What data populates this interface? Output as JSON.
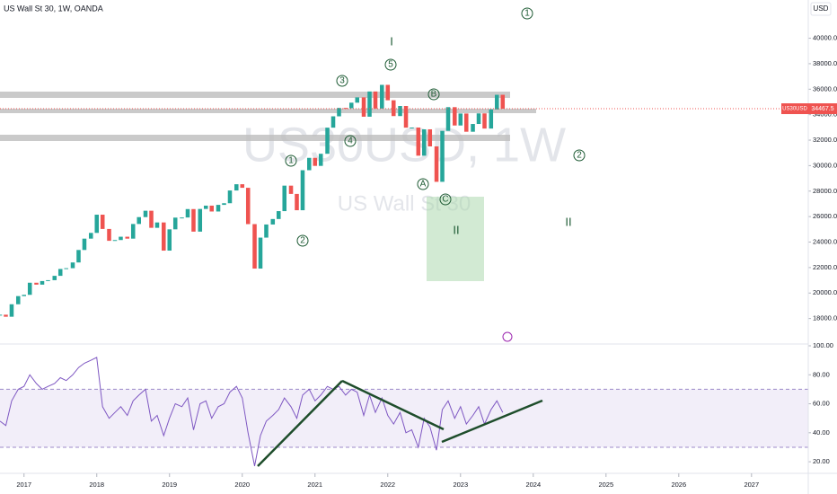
{
  "chart_data": [
    {
      "type": "candlestick",
      "title": "US Wall St 30, 1W, OANDA",
      "watermark": "US30USD, 1W",
      "subtitle": "US Wall St 30",
      "currency": "USD",
      "symbol": "US30USD",
      "x": [
        2016.67,
        2016.75,
        2016.83,
        2016.92,
        2017.0,
        2017.08,
        2017.17,
        2017.25,
        2017.33,
        2017.42,
        2017.5,
        2017.58,
        2017.67,
        2017.75,
        2017.83,
        2017.92,
        2018.0,
        2018.08,
        2018.17,
        2018.25,
        2018.33,
        2018.42,
        2018.5,
        2018.58,
        2018.67,
        2018.75,
        2018.83,
        2018.92,
        2019.0,
        2019.08,
        2019.17,
        2019.25,
        2019.33,
        2019.42,
        2019.5,
        2019.58,
        2019.67,
        2019.75,
        2019.83,
        2019.92,
        2020.0,
        2020.08,
        2020.17,
        2020.25,
        2020.33,
        2020.42,
        2020.5,
        2020.58,
        2020.67,
        2020.75,
        2020.83,
        2020.92,
        2021.0,
        2021.08,
        2021.17,
        2021.25,
        2021.33,
        2021.42,
        2021.5,
        2021.58,
        2021.67,
        2021.75,
        2021.83,
        2021.92,
        2022.0,
        2022.08,
        2022.17,
        2022.25,
        2022.33,
        2022.42,
        2022.5,
        2022.58,
        2022.67,
        2022.75,
        2022.83,
        2022.92,
        2023.0,
        2023.08,
        2023.17,
        2023.25,
        2023.33,
        2023.42,
        2023.5,
        2023.58
      ],
      "values": [
        18300,
        18140,
        19120,
        19760,
        19860,
        20810,
        20660,
        20940,
        21010,
        21350,
        21890,
        21950,
        22400,
        23380,
        24270,
        24720,
        26150,
        25030,
        24100,
        24160,
        24420,
        24270,
        25420,
        25960,
        26460,
        25120,
        25540,
        23330,
        25000,
        25920,
        25930,
        26590,
        24820,
        26600,
        26860,
        26400,
        26920,
        27050,
        28050,
        28540,
        28260,
        25410,
        21920,
        24350,
        25380,
        25810,
        26430,
        28430,
        27780,
        26500,
        29640,
        30610,
        29980,
        30930,
        32980,
        33870,
        34530,
        34500,
        34940,
        35360,
        33840,
        35820,
        34480,
        36340,
        35130,
        33890,
        34680,
        32980,
        32990,
        30780,
        32850,
        31510,
        28730,
        32730,
        34590,
        33150,
        34090,
        32660,
        33270,
        34100,
        32910,
        34410,
        35560,
        34467.5
      ],
      "up_color": "#26a69a",
      "down_color": "#ef5350",
      "last_price": 34467.5,
      "xlim": [
        2016.67,
        2027.78
      ],
      "ylim": [
        16000,
        43000
      ],
      "yticks": [
        {
          "value": 18000,
          "label": "18000.0"
        },
        {
          "value": 20000,
          "label": "20000.0"
        },
        {
          "value": 22000,
          "label": "22000.0"
        },
        {
          "value": 24000,
          "label": "24000.0"
        },
        {
          "value": 26000,
          "label": "26000.0"
        },
        {
          "value": 28000,
          "label": "28000.0"
        },
        {
          "value": 30000,
          "label": "30000.0"
        },
        {
          "value": 32000,
          "label": "32000.0"
        },
        {
          "value": 34000,
          "label": "34000.0"
        },
        {
          "value": 36000,
          "label": "36000.0"
        },
        {
          "value": 38000,
          "label": "38000.0"
        },
        {
          "value": 40000,
          "label": "40000.0"
        }
      ],
      "annotations": [
        "1",
        "3",
        "5",
        "B",
        "4",
        "1",
        "2",
        "A",
        "C",
        "2",
        "I",
        "II",
        "II"
      ]
    },
    {
      "type": "line",
      "color": "#7e57c2",
      "band_color": "#ede7f6",
      "x": [
        2016.67,
        2016.75,
        2016.83,
        2016.92,
        2017.0,
        2017.08,
        2017.17,
        2017.25,
        2017.33,
        2017.42,
        2017.5,
        2017.58,
        2017.67,
        2017.75,
        2017.83,
        2017.92,
        2018.0,
        2018.08,
        2018.17,
        2018.25,
        2018.33,
        2018.42,
        2018.5,
        2018.58,
        2018.67,
        2018.75,
        2018.83,
        2018.92,
        2019.0,
        2019.08,
        2019.17,
        2019.25,
        2019.33,
        2019.42,
        2019.5,
        2019.58,
        2019.67,
        2019.75,
        2019.83,
        2019.92,
        2020.0,
        2020.08,
        2020.17,
        2020.25,
        2020.33,
        2020.42,
        2020.5,
        2020.58,
        2020.67,
        2020.75,
        2020.83,
        2020.92,
        2021.0,
        2021.08,
        2021.17,
        2021.25,
        2021.33,
        2021.42,
        2021.5,
        2021.58,
        2021.67,
        2021.75,
        2021.83,
        2021.92,
        2022.0,
        2022.08,
        2022.17,
        2022.25,
        2022.33,
        2022.42,
        2022.5,
        2022.58,
        2022.67,
        2022.75,
        2022.83,
        2022.92,
        2023.0,
        2023.08,
        2023.17,
        2023.25,
        2023.33,
        2023.42,
        2023.5,
        2023.58
      ],
      "values": [
        48,
        45,
        62,
        70,
        72,
        80,
        74,
        70,
        72,
        74,
        78,
        76,
        80,
        85,
        88,
        90,
        92,
        58,
        50,
        54,
        58,
        52,
        62,
        66,
        70,
        48,
        52,
        38,
        50,
        60,
        58,
        64,
        42,
        60,
        62,
        50,
        58,
        60,
        68,
        72,
        64,
        40,
        17,
        38,
        48,
        52,
        56,
        64,
        58,
        50,
        66,
        70,
        62,
        66,
        72,
        70,
        72,
        66,
        70,
        68,
        52,
        66,
        54,
        64,
        52,
        46,
        54,
        40,
        42,
        30,
        50,
        44,
        28,
        56,
        62,
        50,
        58,
        46,
        52,
        58,
        46,
        56,
        62,
        54
      ],
      "bands": [
        30,
        70
      ],
      "xlim": [
        2016.67,
        2027.78
      ],
      "ylim": [
        12,
        100
      ],
      "xticks": [
        2017,
        2018,
        2019,
        2020,
        2021,
        2022,
        2023,
        2024,
        2025,
        2026,
        2027
      ],
      "yticks": [
        {
          "value": 20,
          "label": "20.00"
        },
        {
          "value": 40,
          "label": "40.00"
        },
        {
          "value": 60,
          "label": "60.00"
        },
        {
          "value": 80,
          "label": "80.00"
        },
        {
          "value": 100,
          "label": "100.00"
        }
      ]
    }
  ]
}
